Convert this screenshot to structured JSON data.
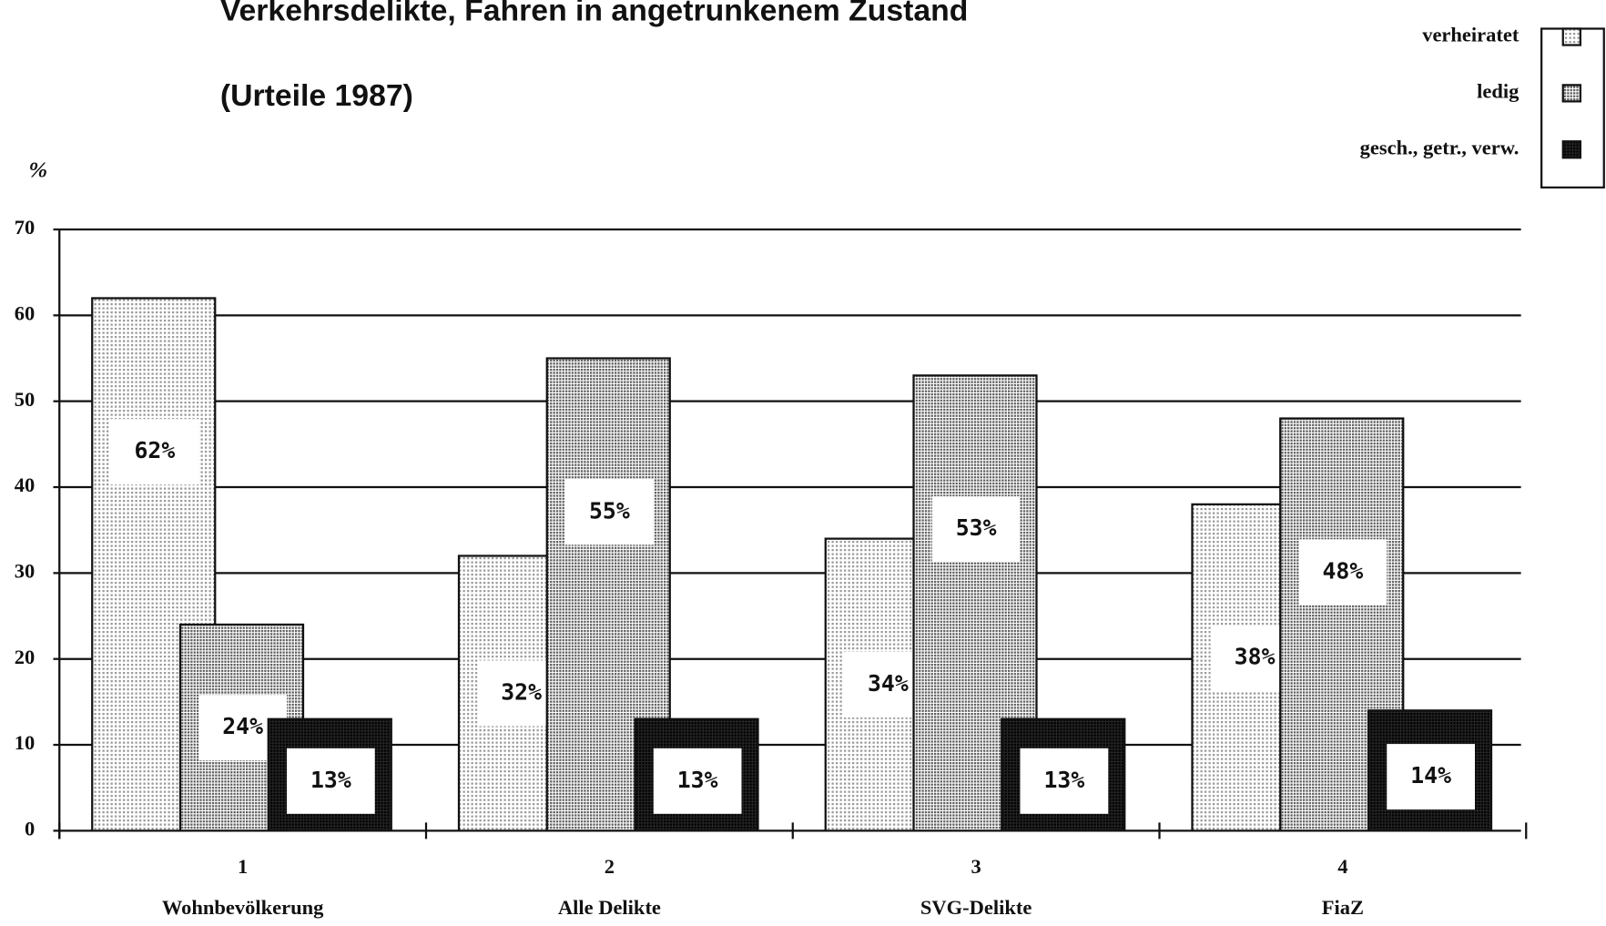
{
  "chart_data": {
    "type": "bar",
    "title": "Verkehrsdelikte, Fahren in angetrunkenem Zustand",
    "subtitle": "(Urteile 1987)",
    "y_label": "%",
    "categories": [
      "1",
      "2",
      "3",
      "4"
    ],
    "category_names": [
      "Wohnbevölkerung",
      "Alle Delikte",
      "SVG-Delikte",
      "FiaZ"
    ],
    "series": [
      {
        "name": "verheiratet",
        "color": "#9a9a9a",
        "values": [
          62,
          32,
          34,
          38
        ],
        "value_labels": [
          "62%",
          "32%",
          "34%",
          "38%"
        ]
      },
      {
        "name": "ledig",
        "color": "#5a5a5a",
        "values": [
          24,
          55,
          53,
          48
        ],
        "value_labels": [
          "24%",
          "55%",
          "53%",
          "48%"
        ]
      },
      {
        "name": "gesch., getr., verw.",
        "color": "#262626",
        "values": [
          13,
          13,
          13,
          14
        ],
        "value_labels": [
          "13%",
          "13%",
          "13%",
          "14%"
        ]
      }
    ],
    "ylim": [
      0,
      70
    ],
    "yticks": [
      0,
      10,
      20,
      30,
      40,
      50,
      60,
      70
    ],
    "grid": true,
    "legend": "top-right"
  }
}
